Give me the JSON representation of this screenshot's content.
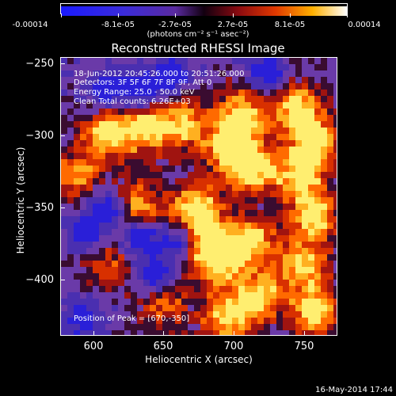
{
  "colorbar": {
    "ticks": [
      "-0.00014",
      "-8.1e-05",
      "-2.7e-05",
      "2.7e-05",
      "8.1e-05",
      "0.00014"
    ],
    "units": "(photons cm⁻² s⁻¹ asec⁻²)"
  },
  "title": "Reconstructed RHESSI Image",
  "annotations": {
    "time": "18-Jun-2012 20:45:26.000 to 20:51:26.000",
    "detectors": "Detectors: 3F 5F 6F 7F 8F 9F, Att 0",
    "energy": "Energy Range: 25.0 - 50.0 keV",
    "clean": "Clean     Total counts: 6.26E+03",
    "peak": "Position of Peak = [670,-350]"
  },
  "axes": {
    "xlabel": "Heliocentric X (arcsec)",
    "ylabel": "Heliocentric Y (arcsec)",
    "xticks": [
      "600",
      "650",
      "700",
      "750"
    ],
    "yticks": [
      "−250",
      "−300",
      "−350",
      "−400"
    ]
  },
  "footer": {
    "date": "16-May-2014 17:44"
  }
}
